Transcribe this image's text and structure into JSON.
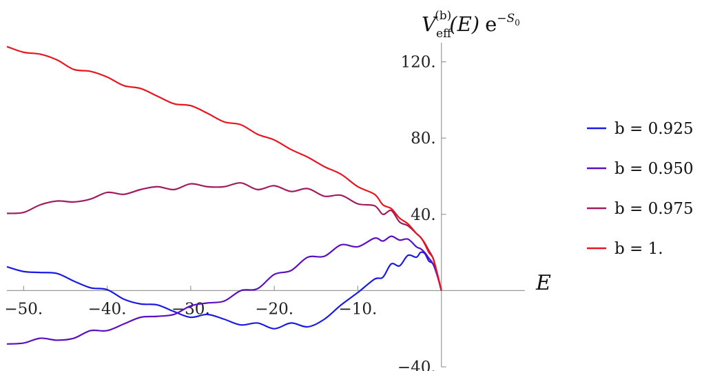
{
  "chart_data": {
    "type": "line",
    "title": "",
    "xlabel": "E",
    "ylabel": {
      "main": "V",
      "superscript": "(b)",
      "subscript": "eff",
      "argument": "(E)",
      "factor": "e",
      "exponent": "−S",
      "exponent_sub": "0"
    },
    "xlim": [
      -52,
      10
    ],
    "ylim": [
      -40,
      130
    ],
    "x_ticks": [
      {
        "value": -50,
        "label": "−50."
      },
      {
        "value": -40,
        "label": "−40."
      },
      {
        "value": -30,
        "label": "−30."
      },
      {
        "value": -20,
        "label": "−20."
      },
      {
        "value": -10,
        "label": "−10."
      }
    ],
    "y_ticks": [
      {
        "value": 120,
        "label": "120."
      },
      {
        "value": 80,
        "label": "80."
      },
      {
        "value": 40,
        "label": "40."
      },
      {
        "value": -40,
        "label": "−40."
      }
    ],
    "grid": false,
    "legend_position": "right",
    "series": [
      {
        "name": "b = 0.925",
        "color": "#1a1ae6",
        "x": [
          -52,
          -50,
          -48,
          -46,
          -44,
          -42,
          -40,
          -38,
          -36,
          -34,
          -32,
          -30,
          -28,
          -26,
          -24,
          -22,
          -20,
          -18,
          -16,
          -14,
          -12,
          -10,
          -8,
          -7,
          -6,
          -5,
          -4,
          -3,
          -2.5,
          -2,
          -1.5,
          -1,
          -0.5,
          0
        ],
        "y": [
          12.5,
          10,
          9.5,
          9,
          5,
          1.5,
          0.5,
          -4.5,
          -7,
          -7.5,
          -11,
          -14,
          -12.5,
          -15,
          -18,
          -17,
          -20,
          -17,
          -19,
          -15,
          -7.5,
          -1,
          6,
          7,
          14,
          13,
          18.5,
          17.5,
          20,
          19.5,
          15.5,
          14,
          8,
          0
        ]
      },
      {
        "name": "b = 0.950",
        "color": "#5a0fc2",
        "x": [
          -52,
          -50,
          -48,
          -46,
          -44,
          -42,
          -40,
          -38,
          -36,
          -34,
          -32,
          -30,
          -28,
          -26,
          -24,
          -22,
          -20,
          -18,
          -16,
          -14,
          -12,
          -10,
          -8,
          -7,
          -6,
          -5,
          -4,
          -3,
          -2.5,
          -2,
          -1.5,
          -1,
          -0.5,
          0
        ],
        "y": [
          -28,
          -27.5,
          -25,
          -26,
          -25,
          -21,
          -21,
          -17.5,
          -14,
          -13.5,
          -12.5,
          -8,
          -6.5,
          -5.5,
          0,
          1,
          8.5,
          10.5,
          17.5,
          18,
          24,
          23,
          27.5,
          26,
          28.5,
          26.5,
          27,
          23,
          22,
          20,
          17,
          14,
          8,
          0
        ]
      },
      {
        "name": "b = 0.975",
        "color": "#a01a5c",
        "x": [
          -52,
          -50,
          -48,
          -46,
          -44,
          -42,
          -40,
          -38,
          -36,
          -34,
          -32,
          -30,
          -28,
          -26,
          -24,
          -22,
          -20,
          -18,
          -16,
          -14,
          -12,
          -10,
          -8,
          -7,
          -6,
          -5,
          -4,
          -3,
          -2.5,
          -2,
          -1.5,
          -1,
          -0.5,
          0
        ],
        "y": [
          40.5,
          41,
          45,
          47,
          46.5,
          48,
          51.5,
          50.5,
          53,
          54.5,
          53,
          56,
          54.5,
          54.5,
          56.5,
          53,
          55,
          52,
          53.5,
          49.5,
          50,
          45.5,
          44.5,
          40,
          42,
          36,
          34,
          30,
          28,
          25,
          21,
          17,
          9,
          0
        ]
      },
      {
        "name": "b = 1.",
        "color": "#e8141e",
        "x": [
          -52,
          -50,
          -48,
          -46,
          -44,
          -42,
          -40,
          -38,
          -36,
          -34,
          -32,
          -30,
          -28,
          -26,
          -24,
          -22,
          -20,
          -18,
          -16,
          -14,
          -12,
          -10,
          -8,
          -7,
          -6,
          -5,
          -4,
          -3,
          -2.5,
          -2,
          -1.5,
          -1,
          -0.5,
          0
        ],
        "y": [
          128,
          125,
          124,
          121,
          116,
          115,
          112,
          107.5,
          106,
          102,
          98,
          97,
          93,
          88.5,
          87,
          82,
          79,
          74,
          70,
          65,
          61,
          54.5,
          50.5,
          45,
          43,
          38,
          35,
          30,
          28,
          24.5,
          20,
          17,
          9,
          0
        ]
      }
    ]
  }
}
